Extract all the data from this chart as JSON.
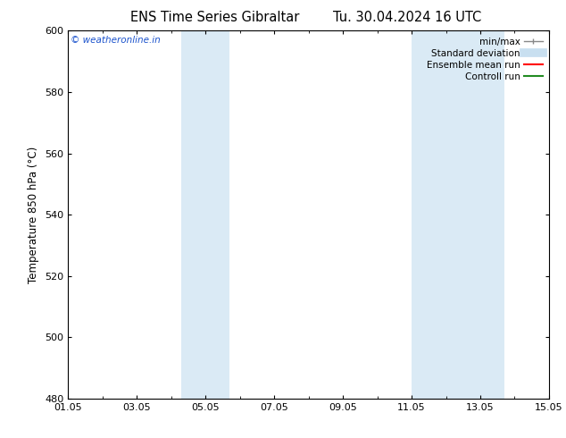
{
  "title_left": "ENS Time Series Gibraltar",
  "title_right": "Tu. 30.04.2024 16 UTC",
  "ylabel": "Temperature 850 hPa (°C)",
  "xlim_start": 0,
  "xlim_end": 14,
  "ylim": [
    480,
    600
  ],
  "yticks": [
    480,
    500,
    520,
    540,
    560,
    580,
    600
  ],
  "xtick_labels": [
    "01.05",
    "03.05",
    "05.05",
    "07.05",
    "09.05",
    "11.05",
    "13.05",
    "15.05"
  ],
  "xtick_positions": [
    0,
    2,
    4,
    6,
    8,
    10,
    12,
    14
  ],
  "background_color": "#ffffff",
  "plot_bg_color": "#ffffff",
  "shaded_bands": [
    {
      "x_start": 3.3,
      "x_end": 4.7,
      "color": "#daeaf5"
    },
    {
      "x_start": 10.0,
      "x_end": 12.7,
      "color": "#daeaf5"
    }
  ],
  "watermark_text": "© weatheronline.in",
  "watermark_color": "#1a52cc",
  "legend_items": [
    {
      "label": "min/max",
      "color": "#aaaaaa",
      "lw": 1.2
    },
    {
      "label": "Standard deviation",
      "color": "#c8dff0",
      "lw": 7
    },
    {
      "label": "Ensemble mean run",
      "color": "#ff0000",
      "lw": 1.5
    },
    {
      "label": "Controll run",
      "color": "#008000",
      "lw": 1.5
    }
  ],
  "title_fontsize": 10.5,
  "axis_label_fontsize": 8.5,
  "tick_fontsize": 8,
  "legend_fontsize": 7.5
}
